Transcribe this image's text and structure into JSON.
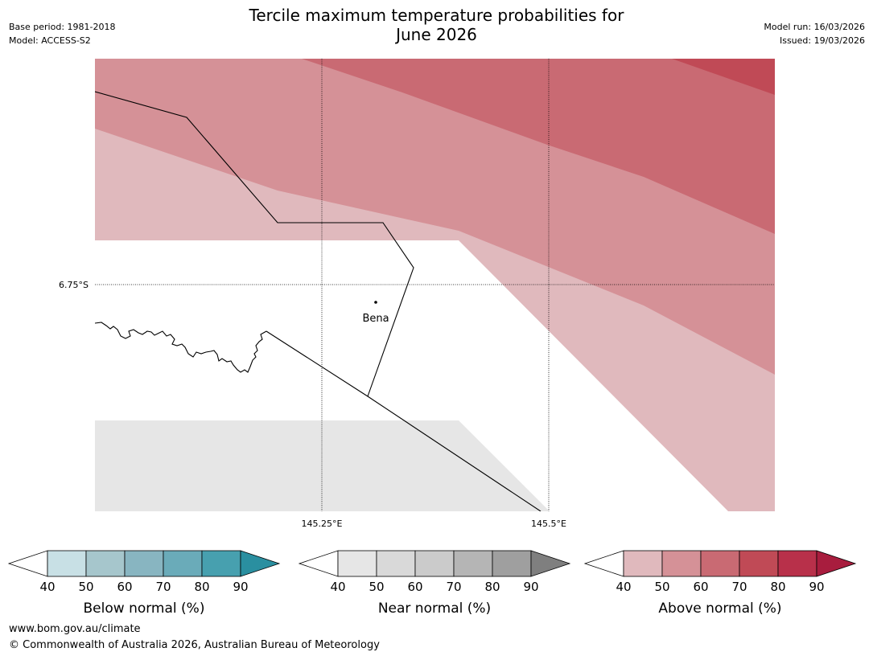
{
  "title": {
    "line1": "Tercile maximum temperature probabilities for",
    "line2": "June 2026"
  },
  "meta": {
    "base_period": "Base period: 1981-2018",
    "model": "Model: ACCESS-S2",
    "model_run": "Model run: 16/03/2026",
    "issued": "Issued: 19/03/2026"
  },
  "map": {
    "lat_label": "6.75°S",
    "lon_labels": [
      "145.25°E",
      "145.5°E"
    ],
    "place": "Bena",
    "colors": {
      "above_40": "#e0b9bd",
      "above_50": "#d59197",
      "above_60": "#c96a73",
      "above_80": "#c04a56",
      "near_40": "#e6e6e6",
      "outline": "#000000"
    }
  },
  "legends": [
    {
      "name": "below",
      "label": "Below normal (%)",
      "ticks": [
        "40",
        "50",
        "60",
        "70",
        "80",
        "90"
      ],
      "colors": [
        "#c8e0e5",
        "#a6c6cc",
        "#88b5c1",
        "#6aabb9",
        "#47a0af",
        "#2a8fa0"
      ]
    },
    {
      "name": "near",
      "label": "Near normal (%)",
      "ticks": [
        "40",
        "50",
        "60",
        "70",
        "80",
        "90"
      ],
      "colors": [
        "#e6e6e6",
        "#d9d9d9",
        "#cbcbcb",
        "#b5b5b5",
        "#9f9f9f",
        "#7f7f7f"
      ]
    },
    {
      "name": "above",
      "label": "Above normal (%)",
      "ticks": [
        "40",
        "50",
        "60",
        "70",
        "80",
        "90"
      ],
      "colors": [
        "#e0b9bd",
        "#d59197",
        "#c96a73",
        "#c04a56",
        "#b8304a",
        "#a81d3e"
      ]
    }
  ],
  "footer": {
    "url": "www.bom.gov.au/climate",
    "copyright": "© Commonwealth of Australia 2026, Australian Bureau of Meteorology"
  }
}
